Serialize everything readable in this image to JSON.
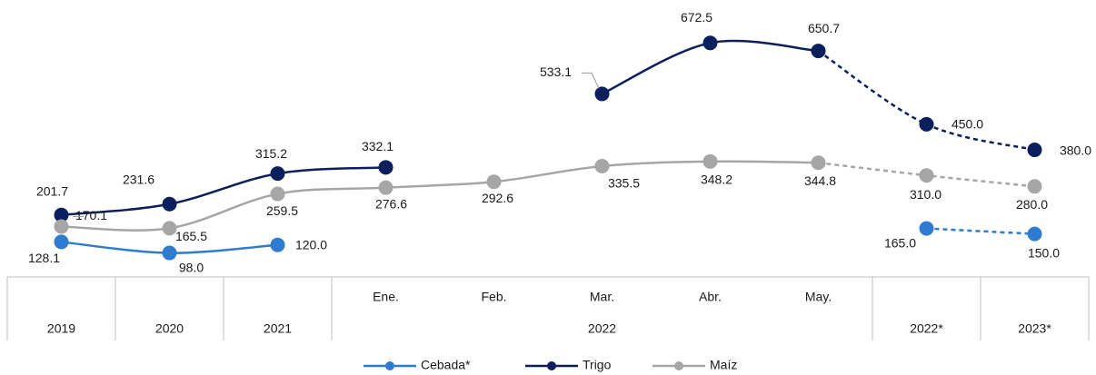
{
  "chart_data": {
    "type": "line",
    "categories": [
      "2019",
      "2020",
      "2021",
      "Ene.",
      "Feb.",
      "Mar.",
      "Abr.",
      "May.",
      "2022*",
      "2023*"
    ],
    "category_group": {
      "label": "2022",
      "first": 3,
      "last": 7
    },
    "dashed_from": 7,
    "ylim": [
      0,
      790
    ],
    "legend": "bottom",
    "series": [
      {
        "name": "Cebada*",
        "color": "#2E7BCF",
        "values": [
          128.1,
          98.0,
          120.0,
          null,
          null,
          null,
          null,
          null,
          165.0,
          150.0
        ],
        "value_labels": [
          "128.1",
          "98.0",
          "120.0",
          null,
          null,
          null,
          null,
          null,
          "165.0",
          "150.0"
        ]
      },
      {
        "name": "Trigo",
        "color": "#0B1F5C",
        "values": [
          201.7,
          231.6,
          315.2,
          332.1,
          null,
          533.1,
          672.5,
          650.7,
          450.0,
          380.0
        ],
        "value_labels": [
          "201.7",
          "231.6",
          "315.2",
          "332.1",
          null,
          "533.1",
          "672.5",
          "650.7",
          "450.0",
          "380.0"
        ]
      },
      {
        "name": "Maíz",
        "color": "#A6A6A6",
        "values": [
          170.1,
          165.5,
          259.5,
          276.6,
          292.6,
          335.5,
          348.2,
          344.8,
          310.0,
          280.0
        ],
        "value_labels": [
          "170.1",
          "165.5",
          "259.5",
          "276.6",
          "292.6",
          "335.5",
          "348.2",
          "344.8",
          "310.0",
          "280.0"
        ]
      }
    ]
  }
}
